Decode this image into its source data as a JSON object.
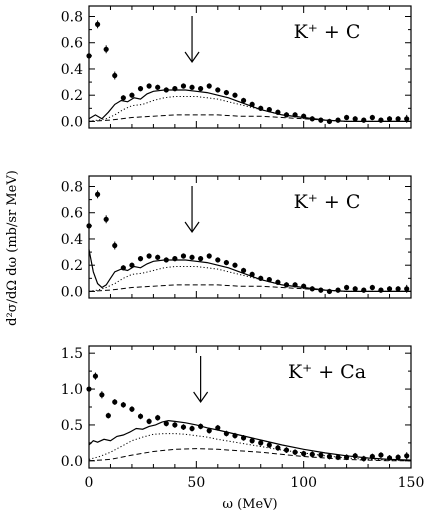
{
  "chart_data": [
    {
      "type": "line",
      "title": "K⁺ + C",
      "xlim": [
        0,
        150
      ],
      "ylim": [
        -0.05,
        0.88
      ],
      "yticks": [
        "0.0",
        "0.2",
        "0.4",
        "0.6",
        "0.8"
      ],
      "arrow_x": 48,
      "series": [
        {
          "style": "data_points",
          "x": [
            0,
            4,
            8,
            12,
            16,
            20,
            24,
            28,
            32,
            36,
            40,
            44,
            48,
            52,
            56,
            60,
            64,
            68,
            72,
            76,
            80,
            84,
            88,
            92,
            96,
            100,
            104,
            108,
            112,
            116,
            120,
            124,
            128,
            132,
            136,
            140,
            144,
            148
          ],
          "y": [
            0.5,
            0.74,
            0.55,
            0.35,
            0.18,
            0.2,
            0.25,
            0.27,
            0.26,
            0.24,
            0.25,
            0.27,
            0.26,
            0.25,
            0.27,
            0.24,
            0.22,
            0.2,
            0.16,
            0.13,
            0.1,
            0.09,
            0.07,
            0.05,
            0.05,
            0.04,
            0.02,
            0.01,
            0.0,
            0.01,
            0.03,
            0.02,
            0.01,
            0.03,
            0.01,
            0.02,
            0.02,
            0.02
          ],
          "err": [
            0.04,
            0.03,
            0.03,
            0.03,
            0.02,
            0.02,
            0.02,
            0.02,
            0.02,
            0.02,
            0.02,
            0.02,
            0.02,
            0.02,
            0.02,
            0.02,
            0.02,
            0.02,
            0.02,
            0.02,
            0.02,
            0.02,
            0.02,
            0.02,
            0.02,
            0.02,
            0.02,
            0.02,
            0.02,
            0.02,
            0.02,
            0.02,
            0.02,
            0.02,
            0.02,
            0.02,
            0.02,
            0.03
          ]
        },
        {
          "style": "solid",
          "x": [
            0,
            3,
            6,
            9,
            12,
            15,
            18,
            21,
            24,
            27,
            30,
            35,
            40,
            45,
            50,
            55,
            60,
            65,
            70,
            75,
            80,
            90,
            100,
            110,
            120,
            130,
            140,
            150
          ],
          "y": [
            0.02,
            0.05,
            0.02,
            0.07,
            0.13,
            0.16,
            0.15,
            0.18,
            0.17,
            0.21,
            0.23,
            0.24,
            0.24,
            0.24,
            0.23,
            0.22,
            0.2,
            0.18,
            0.15,
            0.12,
            0.09,
            0.05,
            0.03,
            0.01,
            0.0,
            0.0,
            0.0,
            0.0
          ]
        },
        {
          "style": "dotted",
          "x": [
            0,
            4,
            8,
            12,
            16,
            20,
            25,
            30,
            35,
            40,
            45,
            50,
            55,
            60,
            65,
            70,
            75,
            80,
            90,
            100,
            110,
            120,
            130,
            140,
            150
          ],
          "y": [
            0.0,
            0.01,
            0.02,
            0.05,
            0.09,
            0.12,
            0.13,
            0.16,
            0.18,
            0.19,
            0.19,
            0.19,
            0.18,
            0.17,
            0.15,
            0.13,
            0.11,
            0.09,
            0.05,
            0.03,
            0.01,
            0.0,
            0.0,
            0.0,
            0.0
          ]
        },
        {
          "style": "dashed",
          "x": [
            0,
            10,
            20,
            30,
            40,
            50,
            60,
            70,
            80,
            90,
            100,
            110,
            120,
            130,
            140,
            150
          ],
          "y": [
            0.0,
            0.01,
            0.03,
            0.04,
            0.05,
            0.05,
            0.05,
            0.04,
            0.04,
            0.03,
            0.02,
            0.01,
            0.0,
            0.0,
            0.0,
            0.0
          ]
        }
      ]
    },
    {
      "type": "line",
      "title": "K⁺ + C",
      "xlim": [
        0,
        150
      ],
      "ylim": [
        -0.05,
        0.88
      ],
      "yticks": [
        "0.0",
        "0.2",
        "0.4",
        "0.6",
        "0.8"
      ],
      "arrow_x": 48,
      "series": [
        {
          "style": "data_points",
          "x": [
            0,
            4,
            8,
            12,
            16,
            20,
            24,
            28,
            32,
            36,
            40,
            44,
            48,
            52,
            56,
            60,
            64,
            68,
            72,
            76,
            80,
            84,
            88,
            92,
            96,
            100,
            104,
            108,
            112,
            116,
            120,
            124,
            128,
            132,
            136,
            140,
            144,
            148
          ],
          "y": [
            0.5,
            0.74,
            0.55,
            0.35,
            0.18,
            0.2,
            0.25,
            0.27,
            0.26,
            0.24,
            0.25,
            0.27,
            0.26,
            0.25,
            0.27,
            0.24,
            0.22,
            0.2,
            0.16,
            0.13,
            0.1,
            0.09,
            0.07,
            0.05,
            0.05,
            0.04,
            0.02,
            0.01,
            0.0,
            0.01,
            0.03,
            0.02,
            0.01,
            0.03,
            0.01,
            0.02,
            0.02,
            0.02
          ],
          "err": [
            0.04,
            0.03,
            0.03,
            0.03,
            0.02,
            0.02,
            0.02,
            0.02,
            0.02,
            0.02,
            0.02,
            0.02,
            0.02,
            0.02,
            0.02,
            0.02,
            0.02,
            0.02,
            0.02,
            0.02,
            0.02,
            0.02,
            0.02,
            0.02,
            0.02,
            0.02,
            0.02,
            0.02,
            0.02,
            0.02,
            0.02,
            0.02,
            0.02,
            0.02,
            0.02,
            0.02,
            0.02,
            0.03
          ]
        },
        {
          "style": "solid",
          "x": [
            0,
            2,
            4,
            6,
            8,
            10,
            12,
            15,
            18,
            21,
            24,
            27,
            30,
            35,
            40,
            45,
            50,
            55,
            60,
            65,
            70,
            75,
            80,
            90,
            100,
            110,
            120,
            130,
            140,
            150
          ],
          "y": [
            0.32,
            0.15,
            0.06,
            0.03,
            0.05,
            0.1,
            0.15,
            0.17,
            0.16,
            0.19,
            0.18,
            0.21,
            0.23,
            0.24,
            0.24,
            0.24,
            0.23,
            0.22,
            0.2,
            0.18,
            0.15,
            0.12,
            0.09,
            0.05,
            0.03,
            0.01,
            0.0,
            0.0,
            0.0,
            0.0
          ]
        },
        {
          "style": "dotted",
          "x": [
            0,
            4,
            8,
            12,
            16,
            20,
            25,
            30,
            35,
            40,
            45,
            50,
            55,
            60,
            65,
            70,
            75,
            80,
            90,
            100,
            110,
            120,
            130,
            140,
            150
          ],
          "y": [
            0.0,
            0.01,
            0.03,
            0.06,
            0.1,
            0.13,
            0.14,
            0.16,
            0.18,
            0.19,
            0.19,
            0.19,
            0.18,
            0.17,
            0.15,
            0.13,
            0.11,
            0.09,
            0.05,
            0.03,
            0.01,
            0.0,
            0.0,
            0.0,
            0.0
          ]
        },
        {
          "style": "dashed",
          "x": [
            0,
            10,
            20,
            30,
            40,
            50,
            60,
            70,
            80,
            90,
            100,
            110,
            120,
            130,
            140,
            150
          ],
          "y": [
            0.0,
            0.01,
            0.03,
            0.04,
            0.05,
            0.05,
            0.05,
            0.04,
            0.04,
            0.03,
            0.02,
            0.01,
            0.0,
            0.0,
            0.0,
            0.0
          ]
        }
      ]
    },
    {
      "type": "line",
      "title": "K⁺ + Ca",
      "xlim": [
        0,
        150
      ],
      "ylim": [
        -0.1,
        1.6
      ],
      "yticks": [
        "0.0",
        "0.5",
        "1.0",
        "1.5"
      ],
      "xticks": [
        "0",
        "50",
        "100",
        "150"
      ],
      "xlabel": "ω (MeV)",
      "arrow_x": 52,
      "series": [
        {
          "style": "data_points",
          "x": [
            0,
            3,
            6,
            9,
            12,
            16,
            20,
            24,
            28,
            32,
            36,
            40,
            44,
            48,
            52,
            56,
            60,
            64,
            68,
            72,
            76,
            80,
            84,
            88,
            92,
            96,
            100,
            104,
            108,
            112,
            116,
            120,
            124,
            128,
            132,
            136,
            140,
            144,
            148
          ],
          "y": [
            1.0,
            1.18,
            0.92,
            0.63,
            0.82,
            0.78,
            0.72,
            0.62,
            0.55,
            0.6,
            0.52,
            0.5,
            0.47,
            0.45,
            0.48,
            0.42,
            0.46,
            0.38,
            0.35,
            0.32,
            0.28,
            0.25,
            0.22,
            0.18,
            0.15,
            0.12,
            0.1,
            0.09,
            0.08,
            0.06,
            0.05,
            0.05,
            0.07,
            0.03,
            0.06,
            0.08,
            0.04,
            0.05,
            0.07
          ],
          "err": [
            0.06,
            0.05,
            0.05,
            0.04,
            0.04,
            0.04,
            0.04,
            0.04,
            0.04,
            0.04,
            0.04,
            0.04,
            0.04,
            0.04,
            0.04,
            0.04,
            0.04,
            0.04,
            0.04,
            0.04,
            0.04,
            0.04,
            0.04,
            0.04,
            0.04,
            0.04,
            0.04,
            0.04,
            0.04,
            0.04,
            0.04,
            0.04,
            0.04,
            0.04,
            0.04,
            0.04,
            0.04,
            0.04,
            0.05
          ]
        },
        {
          "style": "solid",
          "x": [
            0,
            2,
            4,
            7,
            10,
            13,
            16,
            19,
            22,
            25,
            28,
            31,
            34,
            37,
            40,
            45,
            50,
            55,
            60,
            70,
            80,
            90,
            100,
            110,
            120,
            130,
            140,
            150
          ],
          "y": [
            0.22,
            0.28,
            0.26,
            0.3,
            0.28,
            0.34,
            0.36,
            0.4,
            0.45,
            0.44,
            0.48,
            0.5,
            0.54,
            0.56,
            0.55,
            0.53,
            0.5,
            0.46,
            0.43,
            0.36,
            0.29,
            0.22,
            0.16,
            0.11,
            0.07,
            0.04,
            0.02,
            0.01
          ]
        },
        {
          "style": "dotted",
          "x": [
            0,
            5,
            10,
            15,
            20,
            25,
            30,
            35,
            40,
            45,
            50,
            55,
            60,
            70,
            80,
            90,
            100,
            110,
            120,
            130,
            140,
            150
          ],
          "y": [
            0.02,
            0.06,
            0.12,
            0.2,
            0.28,
            0.33,
            0.37,
            0.38,
            0.38,
            0.37,
            0.35,
            0.33,
            0.3,
            0.25,
            0.2,
            0.15,
            0.11,
            0.07,
            0.04,
            0.02,
            0.01,
            0.0
          ]
        },
        {
          "style": "dashed",
          "x": [
            0,
            10,
            20,
            30,
            40,
            50,
            60,
            70,
            80,
            90,
            100,
            110,
            120,
            130,
            140,
            150
          ],
          "y": [
            0.0,
            0.02,
            0.08,
            0.13,
            0.16,
            0.17,
            0.16,
            0.14,
            0.12,
            0.09,
            0.06,
            0.04,
            0.02,
            0.01,
            0.0,
            0.0
          ]
        }
      ]
    }
  ],
  "shared": {
    "ylabel": "d²σ/dΩ dω  (mb/sr MeV)"
  }
}
